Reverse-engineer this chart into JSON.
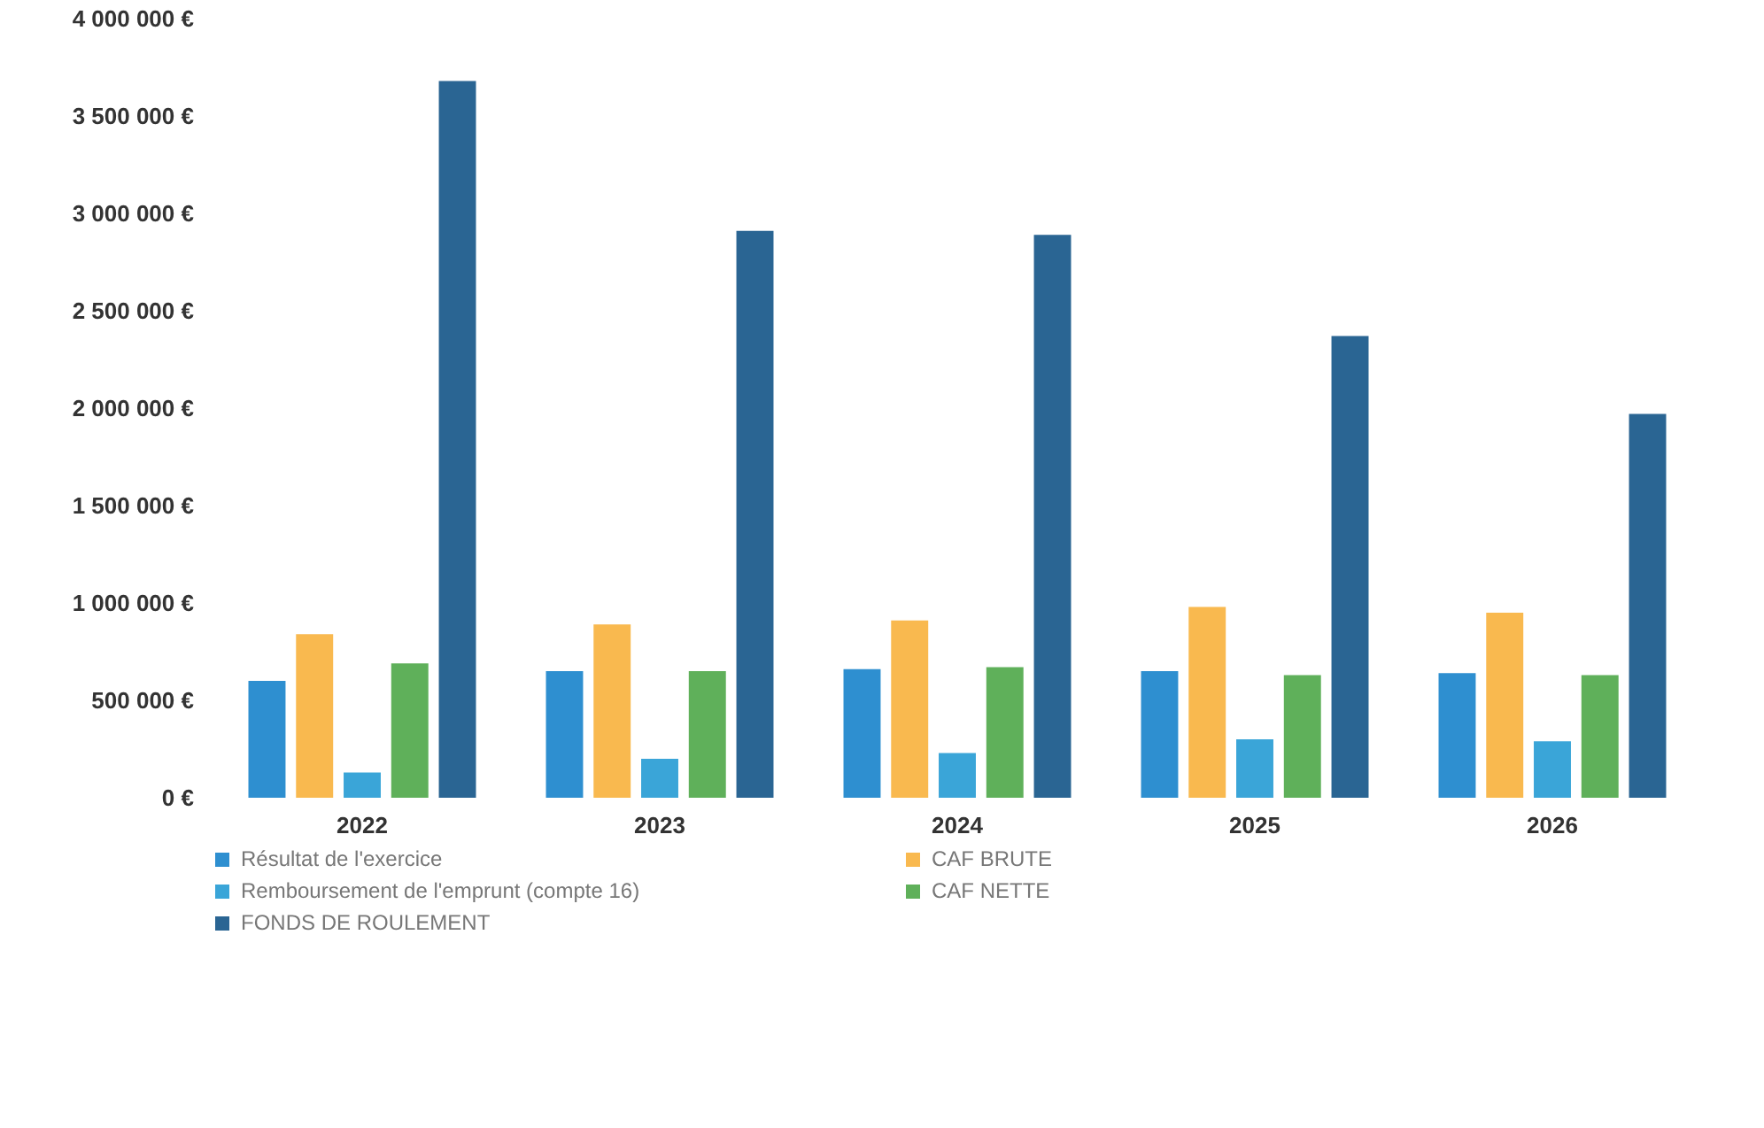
{
  "chart_data": {
    "type": "bar",
    "categories": [
      "2022",
      "2023",
      "2024",
      "2025",
      "2026"
    ],
    "series": [
      {
        "name": "Résultat de l'exercice",
        "color": "#2e8fd0",
        "values": [
          600000,
          650000,
          660000,
          650000,
          640000
        ]
      },
      {
        "name": "CAF BRUTE",
        "color": "#f9b94f",
        "values": [
          840000,
          890000,
          910000,
          980000,
          950000
        ]
      },
      {
        "name": "Remboursement de l'emprunt (compte 16)",
        "color": "#3aa5d8",
        "values": [
          130000,
          200000,
          230000,
          300000,
          290000
        ]
      },
      {
        "name": "CAF NETTE",
        "color": "#5fb05a",
        "values": [
          690000,
          650000,
          670000,
          630000,
          630000
        ]
      },
      {
        "name": "FONDS DE ROULEMENT",
        "color": "#2a6593",
        "values": [
          3680000,
          2910000,
          2890000,
          2370000,
          1970000
        ]
      }
    ],
    "ylim": [
      0,
      4000000
    ],
    "yticks": [
      {
        "value": 0,
        "label": "0 €"
      },
      {
        "value": 500000,
        "label": "500 000 €"
      },
      {
        "value": 1000000,
        "label": "1 000 000 €"
      },
      {
        "value": 1500000,
        "label": "1 500 000 €"
      },
      {
        "value": 2000000,
        "label": "2 000 000 €"
      },
      {
        "value": 2500000,
        "label": "2 500 000 €"
      },
      {
        "value": 3000000,
        "label": "3 000 000 €"
      },
      {
        "value": 3500000,
        "label": "3 500 000 €"
      },
      {
        "value": 4000000,
        "label": "4 000 000 €"
      }
    ],
    "grid": false,
    "legend": "bottom"
  }
}
